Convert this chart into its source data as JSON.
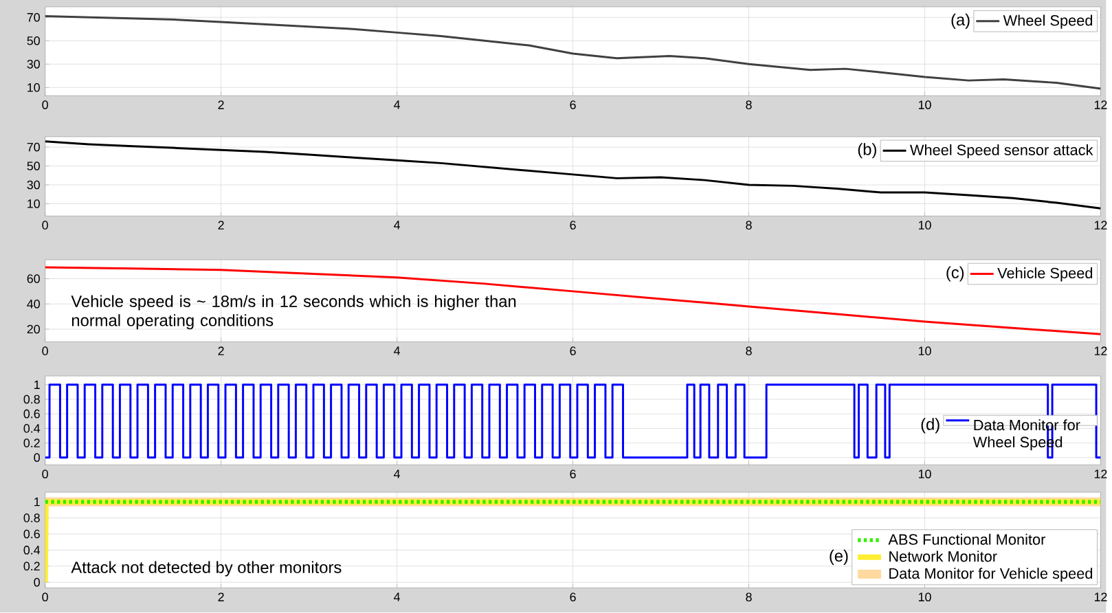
{
  "chart_data": [
    {
      "type": "line",
      "annotations": [
        "(a)"
      ],
      "x": [
        0,
        0.5,
        1,
        1.5,
        2,
        2.5,
        3,
        3.5,
        4,
        4.5,
        5,
        5.5,
        6,
        6.5,
        7.1,
        7.5,
        8,
        8.7,
        9.1,
        9.5,
        10,
        10.5,
        10.9,
        11.5,
        12
      ],
      "series": [
        {
          "name": "Wheel Speed",
          "color": "#404040",
          "values": [
            71,
            70,
            69,
            68,
            66,
            64,
            62,
            60,
            57,
            54,
            50,
            46,
            39,
            35,
            37,
            35,
            30,
            25,
            26,
            23,
            19,
            16,
            17,
            14,
            9
          ]
        }
      ],
      "xlim": [
        0,
        12
      ],
      "ylim": [
        3,
        79
      ],
      "xticks": [
        0,
        2,
        4,
        6,
        8,
        10,
        12
      ],
      "yticks": [
        10,
        30,
        50,
        70
      ],
      "grid": true,
      "legend": "top right"
    },
    {
      "type": "line",
      "annotations": [
        "(b)"
      ],
      "x": [
        0,
        0.5,
        1,
        1.5,
        2,
        2.5,
        3,
        3.5,
        4,
        4.5,
        5,
        5.5,
        6,
        6.5,
        7,
        7.5,
        8,
        8.5,
        9,
        9.5,
        10,
        10.5,
        11,
        11.5,
        12
      ],
      "series": [
        {
          "name": "Wheel Speed sensor attack",
          "color": "#000000",
          "values": [
            76,
            73,
            71,
            69,
            67,
            65,
            62,
            59,
            56,
            53,
            49,
            45,
            41,
            37,
            38,
            35,
            30,
            29,
            26,
            22,
            22,
            19,
            16,
            11,
            5
          ]
        }
      ],
      "xlim": [
        0,
        12
      ],
      "ylim": [
        -3,
        81
      ],
      "xticks": [
        0,
        2,
        4,
        6,
        8,
        10,
        12
      ],
      "yticks": [
        10,
        30,
        50,
        70
      ],
      "grid": true,
      "legend": "top right"
    },
    {
      "type": "line",
      "annotations": [
        "(c)",
        "Vehicle speed is ~ 18m/s in 12 seconds  which is higher than normal operating conditions"
      ],
      "x": [
        0,
        1,
        2,
        3,
        4,
        5,
        6,
        7,
        8,
        9,
        10,
        11,
        12
      ],
      "series": [
        {
          "name": "Vehicle Speed",
          "color": "#ff0000",
          "values": [
            69,
            68,
            67,
            64,
            61,
            56,
            50,
            44,
            38,
            32,
            26,
            21,
            16
          ]
        }
      ],
      "xlim": [
        0,
        12
      ],
      "ylim": [
        10,
        75
      ],
      "xticks": [
        0,
        2,
        4,
        6,
        8,
        10,
        12
      ],
      "yticks": [
        20,
        40,
        60
      ],
      "grid": true,
      "legend": "top right"
    },
    {
      "type": "step",
      "annotations": [
        "(d)"
      ],
      "x": [
        0,
        0.05,
        0.17,
        0.25,
        0.37,
        0.45,
        0.57,
        0.65,
        0.77,
        0.85,
        0.97,
        1.05,
        1.17,
        1.25,
        1.37,
        1.45,
        1.57,
        1.65,
        1.77,
        1.85,
        1.97,
        2.05,
        2.17,
        2.25,
        2.37,
        2.45,
        2.57,
        2.65,
        2.77,
        2.85,
        2.97,
        3.05,
        3.17,
        3.25,
        3.37,
        3.45,
        3.57,
        3.65,
        3.77,
        3.85,
        3.97,
        4.05,
        4.17,
        4.25,
        4.37,
        4.45,
        4.57,
        4.65,
        4.77,
        4.85,
        4.97,
        5.05,
        5.17,
        5.25,
        5.37,
        5.45,
        5.57,
        5.65,
        5.77,
        5.85,
        5.97,
        6.05,
        6.17,
        6.25,
        6.37,
        6.45,
        6.57,
        7.3,
        7.38,
        7.45,
        7.55,
        7.65,
        7.75,
        7.85,
        7.95,
        8.2,
        9.2,
        9.25,
        9.35,
        9.45,
        9.55,
        9.6,
        11.4,
        11.45,
        11.95,
        12
      ],
      "series": [
        {
          "name": "Data Monitor for Wheel Speed",
          "color": "#0000ff",
          "values": [
            0,
            1,
            0,
            1,
            0,
            1,
            0,
            1,
            0,
            1,
            0,
            1,
            0,
            1,
            0,
            1,
            0,
            1,
            0,
            1,
            0,
            1,
            0,
            1,
            0,
            1,
            0,
            1,
            0,
            1,
            0,
            1,
            0,
            1,
            0,
            1,
            0,
            1,
            0,
            1,
            0,
            1,
            0,
            1,
            0,
            1,
            0,
            1,
            0,
            1,
            0,
            1,
            0,
            1,
            0,
            1,
            0,
            1,
            0,
            1,
            0,
            1,
            0,
            1,
            0,
            1,
            0,
            1,
            0,
            1,
            0,
            1,
            0,
            1,
            0,
            1,
            0,
            1,
            0,
            1,
            0,
            1,
            0,
            1,
            0,
            0
          ]
        }
      ],
      "xlim": [
        0,
        12
      ],
      "ylim": [
        -0.1,
        1.12
      ],
      "xticks": [
        0,
        {
          "value": 2,
          "label": null
        },
        4,
        6,
        {
          "value": 8,
          "label": null
        },
        10,
        12
      ],
      "yticks": [
        0,
        0.2,
        0.4,
        0.6,
        0.8,
        1
      ],
      "grid": true,
      "legend": "right"
    },
    {
      "type": "line",
      "annotations": [
        "(e)",
        "Attack not detected by other monitors"
      ],
      "series": [
        {
          "name": "ABS Functional Monitor",
          "color": "#33ee00",
          "line_style": "dotted",
          "x": [
            0,
            12
          ],
          "values": [
            1,
            1
          ]
        },
        {
          "name": "Network Monitor",
          "color": "#ffee33",
          "x": [
            0,
            0.01,
            12
          ],
          "values": [
            0,
            1,
            1
          ]
        },
        {
          "name": "Data Monitor for Vehicle speed",
          "color": "#ffd9a0",
          "x": [
            0,
            12
          ],
          "values": [
            1,
            1
          ]
        }
      ],
      "xlim": [
        0,
        12
      ],
      "ylim": [
        -0.07,
        1.12
      ],
      "xticks": [
        0,
        2,
        4,
        6,
        8,
        10,
        12
      ],
      "yticks": [
        0,
        0.2,
        0.4,
        0.6,
        0.8,
        1
      ],
      "grid": true,
      "legend": "bottom right"
    }
  ]
}
